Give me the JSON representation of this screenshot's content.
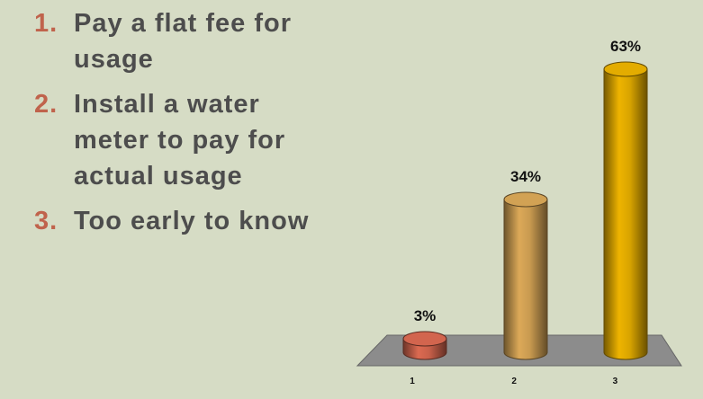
{
  "list": [
    {
      "marker": "1.",
      "text": "Pay a flat fee for usage"
    },
    {
      "marker": "2.",
      "text": "Install a water meter to pay for actual usage"
    },
    {
      "marker": "3.",
      "text": "Too early to know"
    }
  ],
  "chart_data": {
    "type": "bar",
    "categories": [
      "1",
      "2",
      "3"
    ],
    "values": [
      3,
      34,
      63
    ],
    "value_labels": [
      "3%",
      "34%",
      "63%"
    ],
    "colors": [
      "#c8604a",
      "#c89a50",
      "#d8a400"
    ]
  }
}
